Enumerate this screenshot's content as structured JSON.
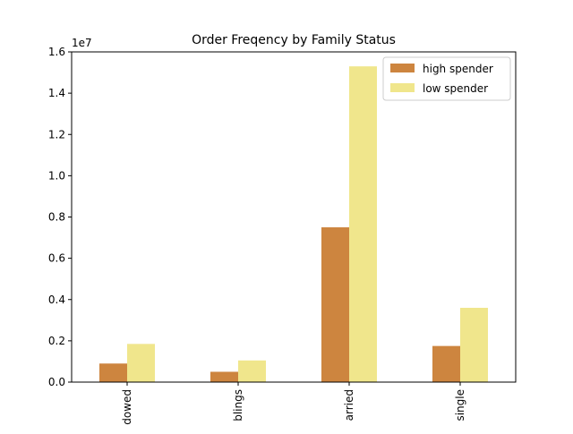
{
  "chart_data": {
    "type": "bar",
    "title": "Order Freqency by Family Status",
    "xlabel": "",
    "ylabel": "",
    "y_offset_label": "1e7",
    "y_scale": 10000000,
    "ylim": [
      0,
      1.6
    ],
    "yticks": [
      0.0,
      0.2,
      0.4,
      0.6,
      0.8,
      1.0,
      1.2,
      1.4,
      1.6
    ],
    "ytick_labels": [
      "0.0",
      "0.2",
      "0.4",
      "0.6",
      "0.8",
      "1.0",
      "1.2",
      "1.4",
      "1.6"
    ],
    "categories": [
      "divorced/widowed",
      "dependants/siblings",
      "married",
      "single"
    ],
    "category_labels_visible": [
      "dowed",
      "blings",
      "arried",
      "single"
    ],
    "series": [
      {
        "name": "high spender",
        "color": "#cd853f",
        "values": [
          0.09,
          0.05,
          0.75,
          0.175
        ]
      },
      {
        "name": "low spender",
        "color": "#f0e68c",
        "values": [
          0.185,
          0.105,
          1.53,
          0.36
        ]
      }
    ],
    "legend": {
      "position": "top-right"
    },
    "grid": false
  }
}
